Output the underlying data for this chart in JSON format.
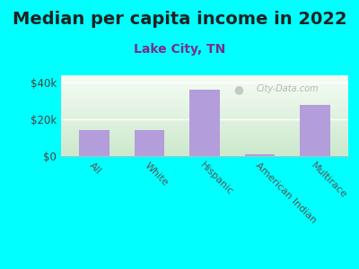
{
  "title": "Median per capita income in 2022",
  "subtitle": "Lake City, TN",
  "categories": [
    "All",
    "White",
    "Hispanic",
    "American Indian",
    "Multirace"
  ],
  "values": [
    14000,
    14000,
    36000,
    1200,
    28000
  ],
  "bar_color": "#b39ddb",
  "background_color": "#00FFFF",
  "ylabel_ticks": [
    0,
    20000,
    40000
  ],
  "ylabel_labels": [
    "$0",
    "$20k",
    "$40k"
  ],
  "ylim": [
    0,
    44000
  ],
  "title_fontsize": 14,
  "subtitle_fontsize": 10,
  "watermark": "City-Data.com",
  "title_color": "#222222",
  "subtitle_color": "#7b2d8b"
}
